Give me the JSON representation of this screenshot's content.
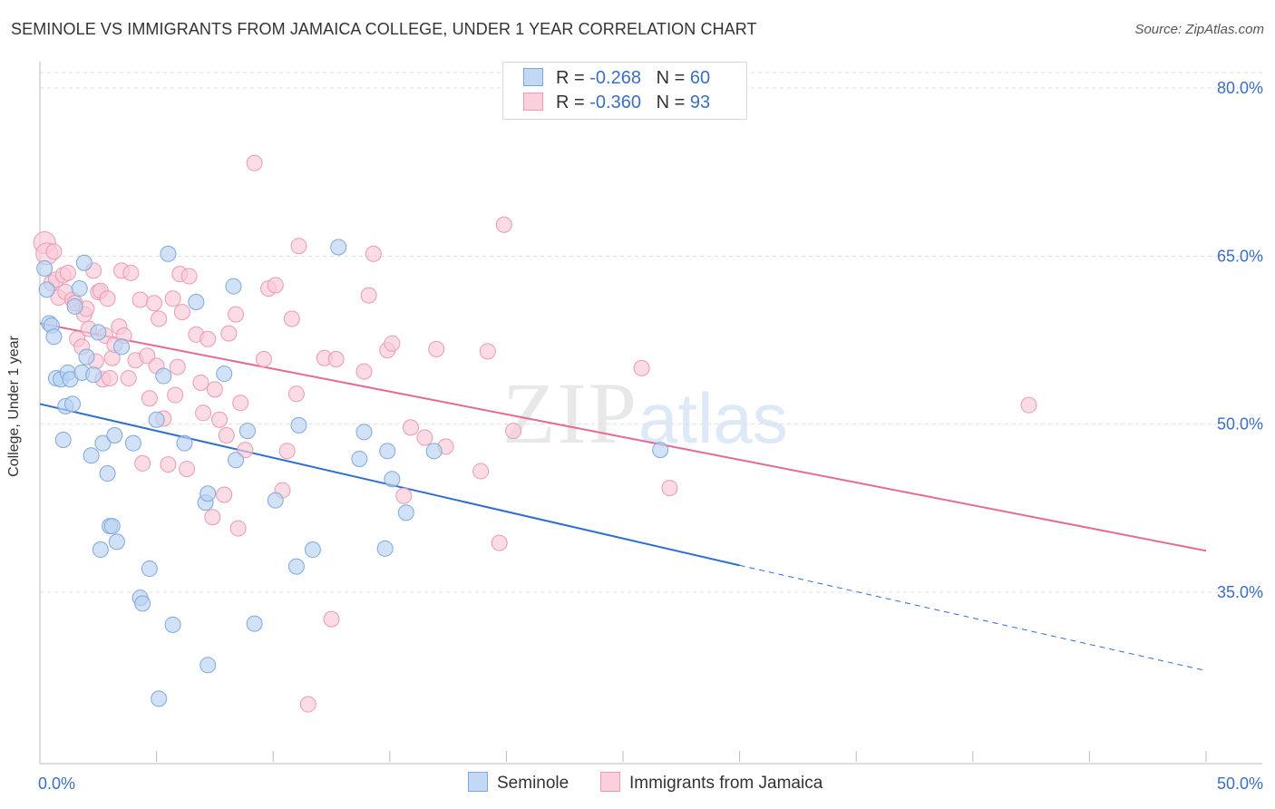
{
  "title": "SEMINOLE VS IMMIGRANTS FROM JAMAICA COLLEGE, UNDER 1 YEAR CORRELATION CHART",
  "source": "Source: ZipAtlas.com",
  "watermark": {
    "zip": "ZIP",
    "atlas": "atlas"
  },
  "legend": {
    "r_label": "R =",
    "n_label": "N =",
    "rows": [
      {
        "name": "Seminole",
        "r": "-0.268",
        "n": "60",
        "color": "#a9c7ef"
      },
      {
        "name": "Immigrants from Jamaica",
        "r": "-0.360",
        "n": "93",
        "color": "#f6b9cb"
      }
    ]
  },
  "colors": {
    "seminole_fill": "#b9d2f2",
    "seminole_stroke": "#7ea8dd",
    "seminole_line": "#2f6fd0",
    "jamaica_fill": "#f9c9d7",
    "jamaica_stroke": "#ec9ab3",
    "jamaica_line": "#e46b94",
    "tick_label": "#3a6fc4",
    "grid": "#dedede"
  },
  "chart_data": {
    "type": "scatter",
    "title": "SEMINOLE VS IMMIGRANTS FROM JAMAICA COLLEGE, UNDER 1 YEAR CORRELATION CHART",
    "xlabel": "",
    "ylabel": "College, Under 1 year",
    "xlim": [
      0,
      50
    ],
    "ylim": [
      20,
      82
    ],
    "x_tick_labels": [
      "0.0%",
      "50.0%"
    ],
    "y_ticks": [
      35,
      50,
      65,
      80
    ],
    "y_tick_labels": [
      "35.0%",
      "50.0%",
      "65.0%",
      "80.0%"
    ],
    "grid": true,
    "legend_placement": "top-center",
    "series": [
      {
        "name": "Seminole",
        "r": -0.268,
        "n": 60,
        "trend": {
          "x0": 0,
          "y0": 51.8,
          "x1": 30,
          "y1": 37.4,
          "dashed_to_x": 50,
          "dashed_to_y": 28.0
        },
        "points": [
          [
            0.2,
            63.9
          ],
          [
            0.3,
            62.0
          ],
          [
            0.4,
            59.0
          ],
          [
            0.5,
            58.8
          ],
          [
            0.6,
            57.8
          ],
          [
            0.7,
            54.1
          ],
          [
            0.9,
            54.0
          ],
          [
            1.0,
            48.6
          ],
          [
            1.1,
            51.6
          ],
          [
            1.2,
            54.6
          ],
          [
            1.3,
            54.0
          ],
          [
            1.4,
            51.8
          ],
          [
            1.5,
            60.5
          ],
          [
            1.7,
            62.1
          ],
          [
            1.8,
            54.6
          ],
          [
            1.9,
            64.4
          ],
          [
            2.0,
            56.0
          ],
          [
            2.2,
            47.2
          ],
          [
            2.3,
            54.4
          ],
          [
            2.5,
            58.2
          ],
          [
            2.7,
            48.3
          ],
          [
            2.9,
            45.6
          ],
          [
            3.0,
            40.9
          ],
          [
            3.1,
            40.9
          ],
          [
            3.2,
            49.0
          ],
          [
            3.3,
            39.5
          ],
          [
            3.5,
            56.9
          ],
          [
            2.6,
            38.8
          ],
          [
            4.0,
            48.3
          ],
          [
            4.3,
            34.5
          ],
          [
            4.4,
            34.0
          ],
          [
            4.7,
            37.1
          ],
          [
            5.0,
            50.4
          ],
          [
            5.1,
            25.5
          ],
          [
            5.3,
            54.3
          ],
          [
            5.5,
            65.2
          ],
          [
            5.7,
            32.1
          ],
          [
            6.2,
            48.3
          ],
          [
            6.7,
            60.9
          ],
          [
            7.1,
            43.0
          ],
          [
            7.2,
            43.8
          ],
          [
            7.2,
            28.5
          ],
          [
            7.9,
            54.5
          ],
          [
            8.3,
            62.3
          ],
          [
            8.4,
            46.8
          ],
          [
            8.9,
            49.4
          ],
          [
            9.2,
            32.2
          ],
          [
            10.1,
            43.2
          ],
          [
            11.0,
            37.3
          ],
          [
            11.1,
            49.9
          ],
          [
            11.7,
            38.8
          ],
          [
            12.8,
            65.8
          ],
          [
            13.7,
            46.9
          ],
          [
            13.9,
            49.3
          ],
          [
            14.8,
            38.9
          ],
          [
            14.9,
            47.6
          ],
          [
            15.1,
            45.1
          ],
          [
            15.7,
            42.1
          ],
          [
            16.9,
            47.6
          ],
          [
            26.6,
            47.7
          ]
        ]
      },
      {
        "name": "Immigrants from Jamaica",
        "r": -0.36,
        "n": 93,
        "trend": {
          "x0": 0,
          "y0": 59.0,
          "x1": 50,
          "y1": 38.7
        },
        "points": [
          [
            0.2,
            66.2
          ],
          [
            0.3,
            65.2
          ],
          [
            0.5,
            62.6
          ],
          [
            0.7,
            62.9
          ],
          [
            0.8,
            61.3
          ],
          [
            1.0,
            63.3
          ],
          [
            1.1,
            61.8
          ],
          [
            1.2,
            63.5
          ],
          [
            1.4,
            61.1
          ],
          [
            1.5,
            60.8
          ],
          [
            1.6,
            57.6
          ],
          [
            1.8,
            56.9
          ],
          [
            1.9,
            59.8
          ],
          [
            2.0,
            60.3
          ],
          [
            2.1,
            58.5
          ],
          [
            2.3,
            63.7
          ],
          [
            2.4,
            55.6
          ],
          [
            2.5,
            61.8
          ],
          [
            2.6,
            61.9
          ],
          [
            2.7,
            54.0
          ],
          [
            2.8,
            57.9
          ],
          [
            2.9,
            61.2
          ],
          [
            3.0,
            54.1
          ],
          [
            3.1,
            55.9
          ],
          [
            3.2,
            57.1
          ],
          [
            3.4,
            58.7
          ],
          [
            3.5,
            63.7
          ],
          [
            3.6,
            57.9
          ],
          [
            3.8,
            54.1
          ],
          [
            3.9,
            63.5
          ],
          [
            4.1,
            55.7
          ],
          [
            4.3,
            61.1
          ],
          [
            4.4,
            46.5
          ],
          [
            4.6,
            56.1
          ],
          [
            4.7,
            52.3
          ],
          [
            4.9,
            60.8
          ],
          [
            5.0,
            55.2
          ],
          [
            5.1,
            59.4
          ],
          [
            5.3,
            50.5
          ],
          [
            5.5,
            46.4
          ],
          [
            5.7,
            61.2
          ],
          [
            5.8,
            52.6
          ],
          [
            5.9,
            55.1
          ],
          [
            6.0,
            63.4
          ],
          [
            6.1,
            60.0
          ],
          [
            6.3,
            46.0
          ],
          [
            6.4,
            63.2
          ],
          [
            6.7,
            58.0
          ],
          [
            6.9,
            53.7
          ],
          [
            7.0,
            51.0
          ],
          [
            7.2,
            57.6
          ],
          [
            7.4,
            41.7
          ],
          [
            7.5,
            53.1
          ],
          [
            7.7,
            50.4
          ],
          [
            7.9,
            43.7
          ],
          [
            8.0,
            49.0
          ],
          [
            8.1,
            58.1
          ],
          [
            8.4,
            59.8
          ],
          [
            8.5,
            40.7
          ],
          [
            8.6,
            51.9
          ],
          [
            8.8,
            47.7
          ],
          [
            9.2,
            73.3
          ],
          [
            9.6,
            55.8
          ],
          [
            9.8,
            62.1
          ],
          [
            10.1,
            62.4
          ],
          [
            10.4,
            44.1
          ],
          [
            10.6,
            47.6
          ],
          [
            10.8,
            59.4
          ],
          [
            11.0,
            52.7
          ],
          [
            11.1,
            65.9
          ],
          [
            11.5,
            25.0
          ],
          [
            12.2,
            55.9
          ],
          [
            12.5,
            32.6
          ],
          [
            12.7,
            55.8
          ],
          [
            13.9,
            54.7
          ],
          [
            14.1,
            61.5
          ],
          [
            14.3,
            65.2
          ],
          [
            14.9,
            56.6
          ],
          [
            15.1,
            57.2
          ],
          [
            15.6,
            43.6
          ],
          [
            15.9,
            49.7
          ],
          [
            16.5,
            48.8
          ],
          [
            17.0,
            56.7
          ],
          [
            17.4,
            48.0
          ],
          [
            18.9,
            45.8
          ],
          [
            19.2,
            56.5
          ],
          [
            19.7,
            39.4
          ],
          [
            19.9,
            67.8
          ],
          [
            20.3,
            49.4
          ],
          [
            25.8,
            55.0
          ],
          [
            27.0,
            44.3
          ],
          [
            42.4,
            51.7
          ],
          [
            0.6,
            65.4
          ]
        ]
      }
    ]
  }
}
